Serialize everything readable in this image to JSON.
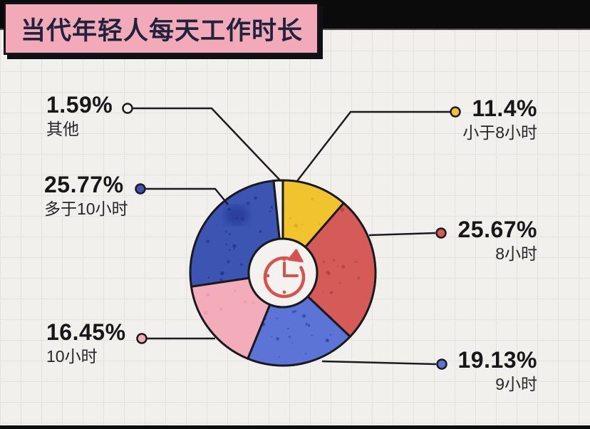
{
  "header": {
    "title": "当代年轻人每天工作时长"
  },
  "chart_data": {
    "type": "pie",
    "donut": true,
    "title": "当代年轻人每天工作时长",
    "unit": "%",
    "direction": "clockwise",
    "start_angle_deg": 0,
    "legend_position": "callouts",
    "center_icon": "clock-refresh-icon",
    "slices": [
      {
        "label": "小于8小时",
        "value": 11.4,
        "display": "11.4%",
        "color": "#F1C32F",
        "speckle": "#CB9A13",
        "callout_side": "right"
      },
      {
        "label": "8小时",
        "value": 25.67,
        "display": "25.67%",
        "color": "#D45B58",
        "speckle": "#A83838",
        "callout_side": "right"
      },
      {
        "label": "9小时",
        "value": 19.13,
        "display": "19.13%",
        "color": "#5B74D6",
        "speckle": "#2438A8",
        "callout_side": "right"
      },
      {
        "label": "10小时",
        "value": 16.45,
        "display": "16.45%",
        "color": "#F2ACBA",
        "speckle": "#DE8FA4",
        "callout_side": "left"
      },
      {
        "label": "多于10小时",
        "value": 25.77,
        "display": "25.77%",
        "color": "#3C55B3",
        "speckle": "#1C2C88",
        "callout_side": "left"
      },
      {
        "label": "其他",
        "value": 1.59,
        "display": "1.59%",
        "color": "#F3F2ED",
        "speckle": "",
        "callout_side": "left"
      }
    ],
    "colors": {
      "outline": "#1A1A1E",
      "paper_bg": "#F1F0EC",
      "grid_line": "#E3E2DD",
      "frame_bg": "#0B0B0C",
      "title_bg": "#F2A9B8",
      "title_text": "#20233C",
      "icon_red": "#D8514C",
      "hole_fill": "#F3F2EE"
    }
  }
}
